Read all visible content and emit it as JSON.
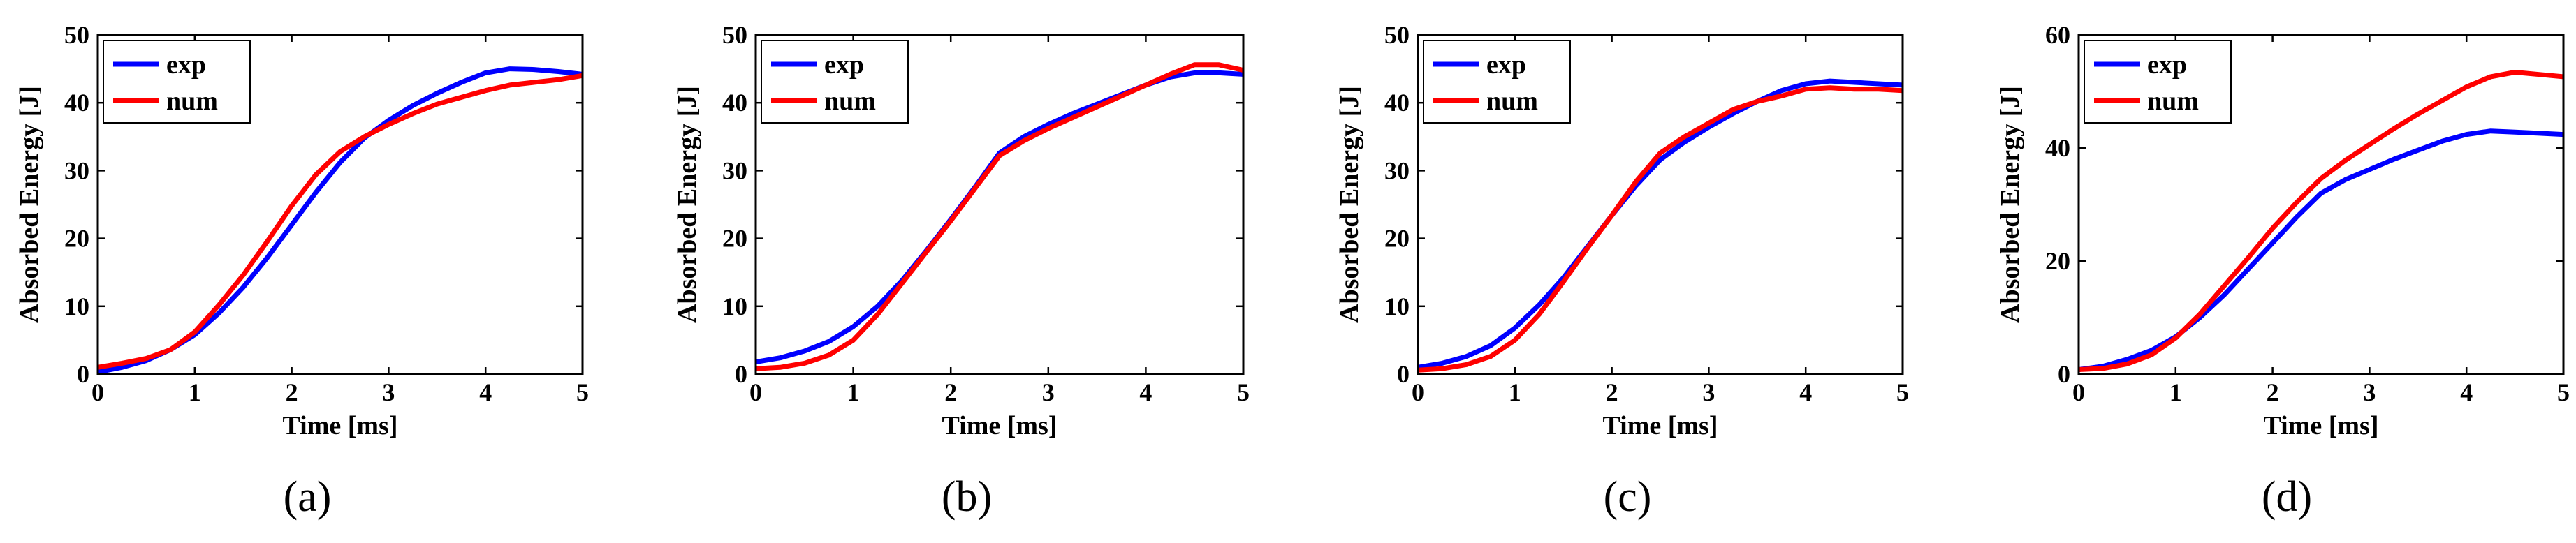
{
  "chart_data": [
    {
      "type": "line",
      "caption": "(a)",
      "xlabel": "Time [ms]",
      "ylabel": "Absorbed Energy [J]",
      "xlim": [
        0,
        5
      ],
      "ylim": [
        0,
        50
      ],
      "xticks": [
        0,
        1,
        2,
        3,
        4,
        5
      ],
      "yticks": [
        0,
        10,
        20,
        30,
        40,
        50
      ],
      "legend_position": "top-left",
      "series": [
        {
          "name": "exp",
          "color": "#0000ff",
          "x": [
            0,
            0.25,
            0.5,
            0.75,
            1,
            1.25,
            1.5,
            1.75,
            2,
            2.25,
            2.5,
            2.75,
            3,
            3.25,
            3.5,
            3.75,
            4,
            4.25,
            4.5,
            4.75,
            5
          ],
          "y": [
            0.3,
            1.0,
            2.0,
            3.6,
            5.8,
            9.0,
            12.8,
            17.2,
            22.0,
            26.8,
            31.2,
            34.8,
            37.4,
            39.6,
            41.4,
            43.0,
            44.4,
            45.0,
            44.9,
            44.6,
            44.2
          ]
        },
        {
          "name": "num",
          "color": "#ff0000",
          "x": [
            0,
            0.25,
            0.5,
            0.75,
            1,
            1.25,
            1.5,
            1.75,
            2,
            2.25,
            2.5,
            2.75,
            3,
            3.25,
            3.5,
            3.75,
            4,
            4.25,
            4.5,
            4.75,
            5
          ],
          "y": [
            1.0,
            1.6,
            2.3,
            3.6,
            6.2,
            10.2,
            14.6,
            19.6,
            24.8,
            29.4,
            32.8,
            35.0,
            36.8,
            38.4,
            39.8,
            40.8,
            41.8,
            42.6,
            43.0,
            43.4,
            44.0
          ]
        }
      ]
    },
    {
      "type": "line",
      "caption": "(b)",
      "xlabel": "Time [ms]",
      "ylabel": "Absorbed Energy [J]",
      "xlim": [
        0,
        5
      ],
      "ylim": [
        0,
        50
      ],
      "xticks": [
        0,
        1,
        2,
        3,
        4,
        5
      ],
      "yticks": [
        0,
        10,
        20,
        30,
        40,
        50
      ],
      "legend_position": "top-left",
      "series": [
        {
          "name": "exp",
          "color": "#0000ff",
          "x": [
            0,
            0.25,
            0.5,
            0.75,
            1,
            1.25,
            1.5,
            1.75,
            2,
            2.25,
            2.5,
            2.75,
            3,
            3.25,
            3.5,
            3.75,
            4,
            4.25,
            4.5,
            4.75,
            5
          ],
          "y": [
            1.8,
            2.4,
            3.4,
            4.8,
            7.0,
            10.0,
            13.8,
            18.2,
            22.8,
            27.6,
            32.6,
            35.0,
            36.8,
            38.4,
            39.8,
            41.2,
            42.6,
            43.8,
            44.4,
            44.4,
            44.2
          ]
        },
        {
          "name": "num",
          "color": "#ff0000",
          "x": [
            0,
            0.25,
            0.5,
            0.75,
            1,
            1.25,
            1.5,
            1.75,
            2,
            2.25,
            2.5,
            2.75,
            3,
            3.25,
            3.5,
            3.75,
            4,
            4.25,
            4.5,
            4.75,
            5
          ],
          "y": [
            0.8,
            1.0,
            1.6,
            2.8,
            5.0,
            8.8,
            13.4,
            18.0,
            22.6,
            27.4,
            32.2,
            34.4,
            36.2,
            37.8,
            39.4,
            41.0,
            42.6,
            44.2,
            45.6,
            45.6,
            44.8
          ]
        }
      ]
    },
    {
      "type": "line",
      "caption": "(c)",
      "xlabel": "Time [ms]",
      "ylabel": "Absorbed Energy [J]",
      "xlim": [
        0,
        5
      ],
      "ylim": [
        0,
        50
      ],
      "xticks": [
        0,
        1,
        2,
        3,
        4,
        5
      ],
      "yticks": [
        0,
        10,
        20,
        30,
        40,
        50
      ],
      "legend_position": "top-left",
      "series": [
        {
          "name": "exp",
          "color": "#0000ff",
          "x": [
            0,
            0.25,
            0.5,
            0.75,
            1,
            1.25,
            1.5,
            1.75,
            2,
            2.25,
            2.5,
            2.75,
            3,
            3.25,
            3.5,
            3.75,
            4,
            4.25,
            4.5,
            4.75,
            5
          ],
          "y": [
            1.0,
            1.6,
            2.6,
            4.2,
            6.8,
            10.2,
            14.2,
            18.8,
            23.4,
            27.8,
            31.6,
            34.2,
            36.4,
            38.4,
            40.2,
            41.8,
            42.8,
            43.2,
            43.0,
            42.8,
            42.6
          ]
        },
        {
          "name": "num",
          "color": "#ff0000",
          "x": [
            0,
            0.25,
            0.5,
            0.75,
            1,
            1.25,
            1.5,
            1.75,
            2,
            2.25,
            2.5,
            2.75,
            3,
            3.25,
            3.5,
            3.75,
            4,
            4.25,
            4.5,
            4.75,
            5
          ],
          "y": [
            0.6,
            0.8,
            1.4,
            2.6,
            5.0,
            8.8,
            13.6,
            18.6,
            23.4,
            28.4,
            32.6,
            35.0,
            37.0,
            39.0,
            40.2,
            41.0,
            42.0,
            42.2,
            42.0,
            42.0,
            41.8
          ]
        }
      ]
    },
    {
      "type": "line",
      "caption": "(d)",
      "xlabel": "Time [ms]",
      "ylabel": "Absorbed Energy [J]",
      "xlim": [
        0,
        5
      ],
      "ylim": [
        0,
        60
      ],
      "xticks": [
        0,
        1,
        2,
        3,
        4,
        5
      ],
      "yticks": [
        0,
        20,
        40,
        60
      ],
      "legend_position": "top-left",
      "series": [
        {
          "name": "exp",
          "color": "#0000ff",
          "x": [
            0,
            0.25,
            0.5,
            0.75,
            1,
            1.25,
            1.5,
            1.75,
            2,
            2.25,
            2.5,
            2.75,
            3,
            3.25,
            3.5,
            3.75,
            4,
            4.25,
            4.5,
            4.75,
            5
          ],
          "y": [
            0.8,
            1.4,
            2.6,
            4.2,
            6.6,
            10.0,
            14.0,
            18.6,
            23.2,
            27.8,
            32.0,
            34.4,
            36.2,
            38.0,
            39.6,
            41.2,
            42.4,
            43.0,
            42.8,
            42.6,
            42.4
          ]
        },
        {
          "name": "num",
          "color": "#ff0000",
          "x": [
            0,
            0.25,
            0.5,
            0.75,
            1,
            1.25,
            1.5,
            1.75,
            2,
            2.25,
            2.5,
            2.75,
            3,
            3.25,
            3.5,
            3.75,
            4,
            4.25,
            4.5,
            4.75,
            5
          ],
          "y": [
            0.8,
            1.0,
            1.8,
            3.4,
            6.4,
            10.6,
            15.6,
            20.6,
            25.8,
            30.4,
            34.6,
            37.8,
            40.6,
            43.4,
            46.0,
            48.4,
            50.8,
            52.6,
            53.4,
            53.0,
            52.6
          ]
        }
      ]
    }
  ]
}
